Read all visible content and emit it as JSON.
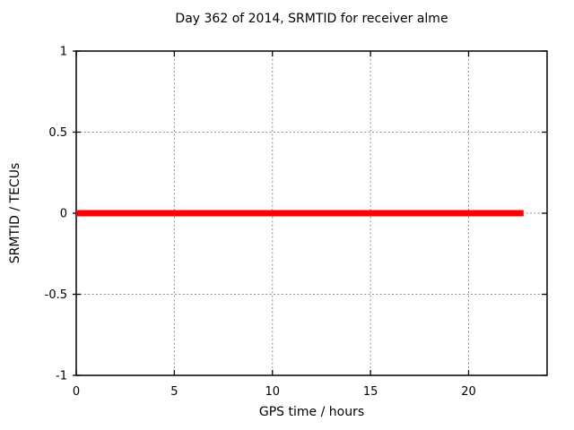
{
  "figure": {
    "background": "#ffffff",
    "axis_color": "#000000",
    "grid_color": "#909090",
    "text_color": "#000000"
  },
  "chart_data": {
    "type": "line",
    "title": "Day 362 of 2014, SRMTID for receiver alme",
    "xlabel": "GPS time / hours",
    "ylabel": "SRMTID / TECUs",
    "xlim": [
      0,
      24
    ],
    "ylim": [
      -1,
      1
    ],
    "grid": true,
    "x_ticks": [
      "0",
      "5",
      "10",
      "15",
      "20"
    ],
    "x_tick_values": [
      0,
      5,
      10,
      15,
      20
    ],
    "y_ticks": [
      "1",
      "0.5",
      "0",
      "-0.5",
      "-1"
    ],
    "y_tick_values": [
      1,
      0.5,
      0,
      -0.5,
      -1
    ],
    "series": [
      {
        "name": "SRMTID",
        "color": "#ff0000",
        "line_width": 7,
        "x": [
          0,
          22.8
        ],
        "y": [
          0,
          0
        ]
      }
    ]
  }
}
